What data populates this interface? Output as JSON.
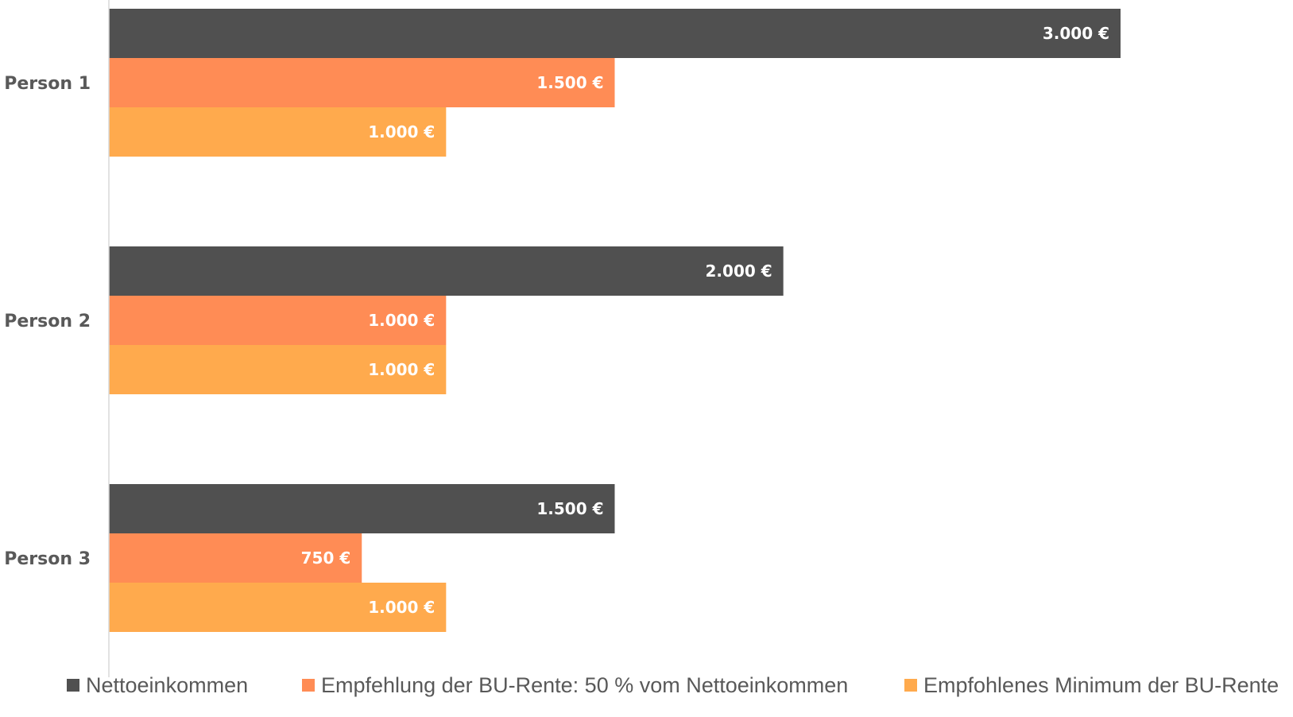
{
  "chart_data": {
    "type": "bar",
    "orientation": "horizontal",
    "categories": [
      "Person 1",
      "Person 2",
      "Person 3"
    ],
    "series": [
      {
        "name": "Nettoeinkommen",
        "values": [
          3000,
          2000,
          1500
        ],
        "labels": [
          "3.000 €",
          "2.000 €",
          "1.500 €"
        ],
        "color": "#505050"
      },
      {
        "name": "Empfehlung der BU-Rente: 50 % vom Nettoeinkommen",
        "values": [
          1500,
          1000,
          750
        ],
        "labels": [
          "1.500 €",
          "1.000 €",
          "750 €"
        ],
        "color": "#FF8C55"
      },
      {
        "name": "Empfohlenes Minimum der BU-Rente",
        "values": [
          1000,
          1000,
          1000
        ],
        "labels": [
          "1.000 €",
          "1.000 €",
          "1.000 €"
        ],
        "color": "#FFAA4D"
      }
    ],
    "xlim": [
      0,
      3500
    ],
    "grid": false,
    "legend": "bottom",
    "axis_color": "#D9D9D9"
  }
}
